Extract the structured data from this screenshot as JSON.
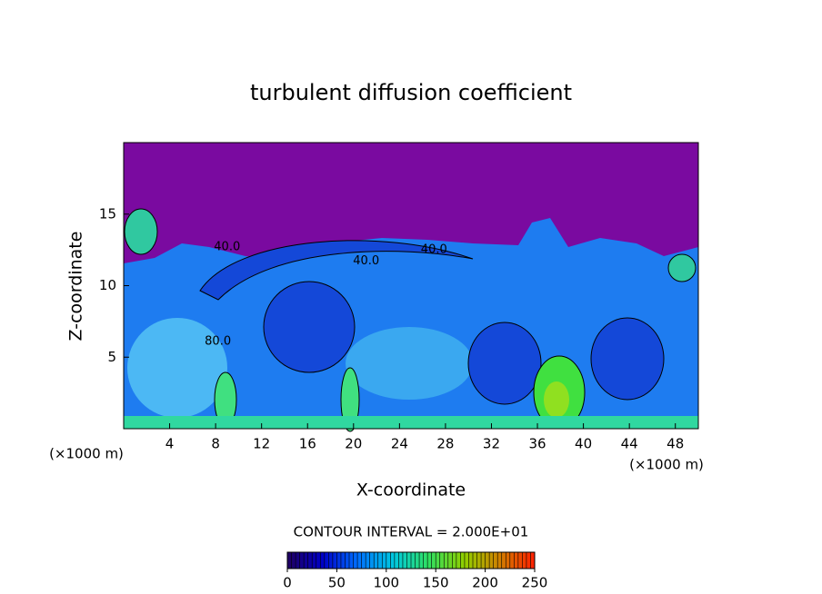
{
  "chart_data": {
    "type": "contour",
    "title": "turbulent diffusion coefficient",
    "x_label": "X-coordinate",
    "y_label": "Z-coordinate",
    "x_unit_label": "(×1000 m)",
    "y_unit_label": "(×1000 m)",
    "xlim": [
      0,
      50
    ],
    "ylim": [
      0,
      20
    ],
    "xticks": [
      4,
      8,
      12,
      16,
      20,
      24,
      28,
      32,
      36,
      40,
      44,
      48
    ],
    "yticks": [
      5,
      10,
      15
    ],
    "contour_interval_text": "CONTOUR INTERVAL = 2.000E+01",
    "contour_labels": [
      {
        "value": 40,
        "label": "40.0",
        "x": 9,
        "z": 12.7
      },
      {
        "value": 40,
        "label": "40.0",
        "x": 21.1,
        "z": 11.7
      },
      {
        "value": 40,
        "label": "40.0",
        "x": 27,
        "z": 12.5
      },
      {
        "value": 80,
        "label": "80.0",
        "x": 8.2,
        "z": 6.1
      }
    ],
    "colorbar": {
      "lim": [
        0,
        250
      ],
      "ticks": [
        0,
        50,
        100,
        150,
        200,
        250
      ],
      "colors": [
        "#200060",
        "#0000c8",
        "#0070ff",
        "#00c8e0",
        "#30e060",
        "#90d000",
        "#d08000",
        "#ff2000"
      ]
    }
  }
}
